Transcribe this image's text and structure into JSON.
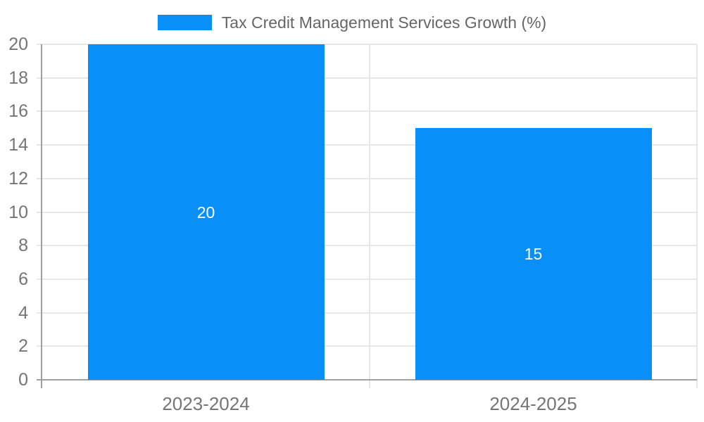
{
  "legend": {
    "label": "Tax Credit Management Services Growth (%)"
  },
  "chart_data": {
    "type": "bar",
    "title": "Tax Credit Management Services Growth (%)",
    "categories": [
      "2023-2024",
      "2024-2025"
    ],
    "values": [
      20,
      15
    ],
    "value_labels": [
      "20",
      "15"
    ],
    "xlabel": "",
    "ylabel": "",
    "ylim": [
      0,
      20
    ],
    "ytick_step": 2,
    "yticks": [
      0,
      2,
      4,
      6,
      8,
      10,
      12,
      14,
      16,
      18,
      20
    ],
    "grid": true,
    "legend_position": "top-center",
    "bar_color": "#0890f8",
    "value_label_color": "#ffffff"
  },
  "colors": {
    "bar": "#0890f8",
    "grid": "#e7e7e7",
    "axis": "#a0a0a0",
    "tick_below_axis": "#c4c4c4",
    "tick_label": "#757575",
    "legend_text": "#666666",
    "background": "#ffffff"
  }
}
